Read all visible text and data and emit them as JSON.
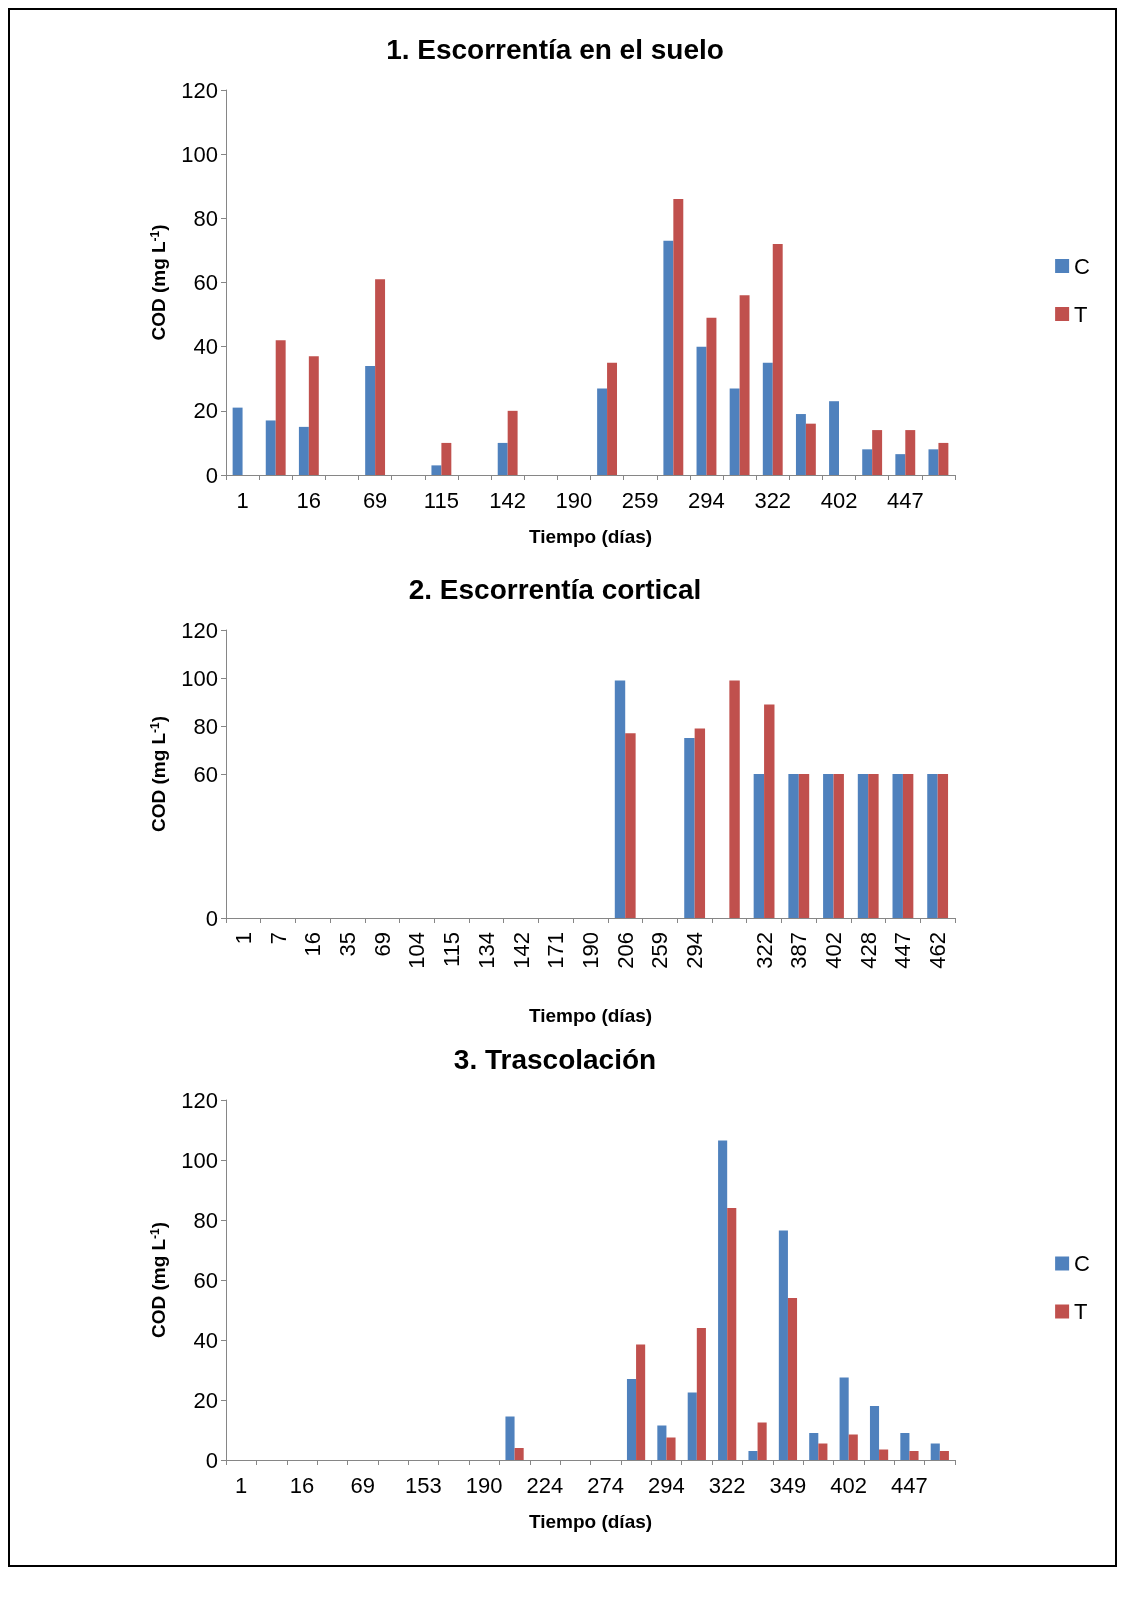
{
  "chart_data": [
    {
      "type": "bar",
      "title": "1. Escorrentía en el suelo",
      "xlabel": "Tiempo (días)",
      "ylabel": "COD (mg L$^{-1}$)",
      "categories": [
        "1",
        null,
        "16",
        null,
        "69",
        null,
        "115",
        null,
        "142",
        null,
        "190",
        null,
        "259",
        null,
        "294",
        null,
        "322",
        null,
        "402",
        null,
        "447",
        null
      ],
      "series": [
        {
          "name": "C",
          "color": "#4f81bd",
          "values": [
            21,
            17,
            15,
            null,
            34,
            null,
            3,
            null,
            10,
            null,
            null,
            27,
            null,
            73,
            40,
            27,
            35,
            19,
            23,
            8,
            6.5,
            8
          ]
        },
        {
          "name": "T",
          "color": "#c0504d",
          "values": [
            null,
            42,
            37,
            null,
            61,
            null,
            10,
            null,
            20,
            null,
            null,
            35,
            null,
            86,
            49,
            56,
            72,
            16,
            null,
            14,
            14,
            10
          ]
        }
      ],
      "ylim": [
        0,
        120
      ],
      "yticks": [
        0,
        20,
        40,
        60,
        80,
        100,
        120
      ],
      "grid": false,
      "legend": "right"
    },
    {
      "type": "bar",
      "title": "2. Escorrentía cortical",
      "xlabel": "Tiempo (días)",
      "ylabel": "COD (mg L$^{-1}$)",
      "categories": [
        "1",
        "7",
        "16",
        "35",
        "69",
        "104",
        "115",
        "134",
        "142",
        "171",
        "190",
        "206",
        "259",
        "294",
        null,
        "322",
        "387",
        "402",
        "428",
        "447",
        "462"
      ],
      "series": [
        {
          "color": "#4f81bd",
          "values": [
            null,
            null,
            null,
            null,
            null,
            null,
            null,
            null,
            null,
            null,
            null,
            99,
            null,
            75,
            null,
            60,
            60,
            60,
            60,
            60,
            60
          ]
        },
        {
          "color": "#c0504d",
          "values": [
            null,
            null,
            null,
            null,
            null,
            null,
            null,
            null,
            null,
            null,
            null,
            77,
            null,
            79,
            99,
            89,
            60,
            60,
            60,
            60,
            60
          ]
        }
      ],
      "ylim": [
        0,
        120
      ],
      "yticks": [
        0,
        60,
        80,
        100,
        120
      ],
      "grid": false,
      "legend": false
    },
    {
      "type": "bar",
      "title": "3. Trascolación",
      "xlabel": "Tiempo (días)",
      "ylabel": "COD (mg L$^{-1}$)",
      "categories": [
        "1",
        null,
        "16",
        null,
        "69",
        null,
        "153",
        null,
        "190",
        null,
        "224",
        null,
        "274",
        null,
        "294",
        null,
        "322",
        null,
        "349",
        null,
        "402",
        null,
        "447",
        null
      ],
      "series": [
        {
          "name": "C",
          "color": "#4f81bd",
          "values": [
            null,
            null,
            null,
            null,
            null,
            null,
            null,
            null,
            null,
            14.5,
            null,
            null,
            null,
            27,
            11.5,
            22.5,
            106.5,
            3,
            76.5,
            9,
            27.5,
            18,
            9,
            5.5
          ]
        },
        {
          "name": "T",
          "color": "#c0504d",
          "values": [
            null,
            null,
            null,
            null,
            null,
            null,
            null,
            null,
            null,
            4,
            null,
            null,
            null,
            38.5,
            7.5,
            44,
            84,
            12.5,
            54,
            5.5,
            8.5,
            3.5,
            3,
            3
          ]
        }
      ],
      "ylim": [
        0,
        120
      ],
      "yticks": [
        0,
        20,
        40,
        60,
        80,
        100,
        120
      ],
      "grid": false,
      "legend": "right"
    }
  ]
}
